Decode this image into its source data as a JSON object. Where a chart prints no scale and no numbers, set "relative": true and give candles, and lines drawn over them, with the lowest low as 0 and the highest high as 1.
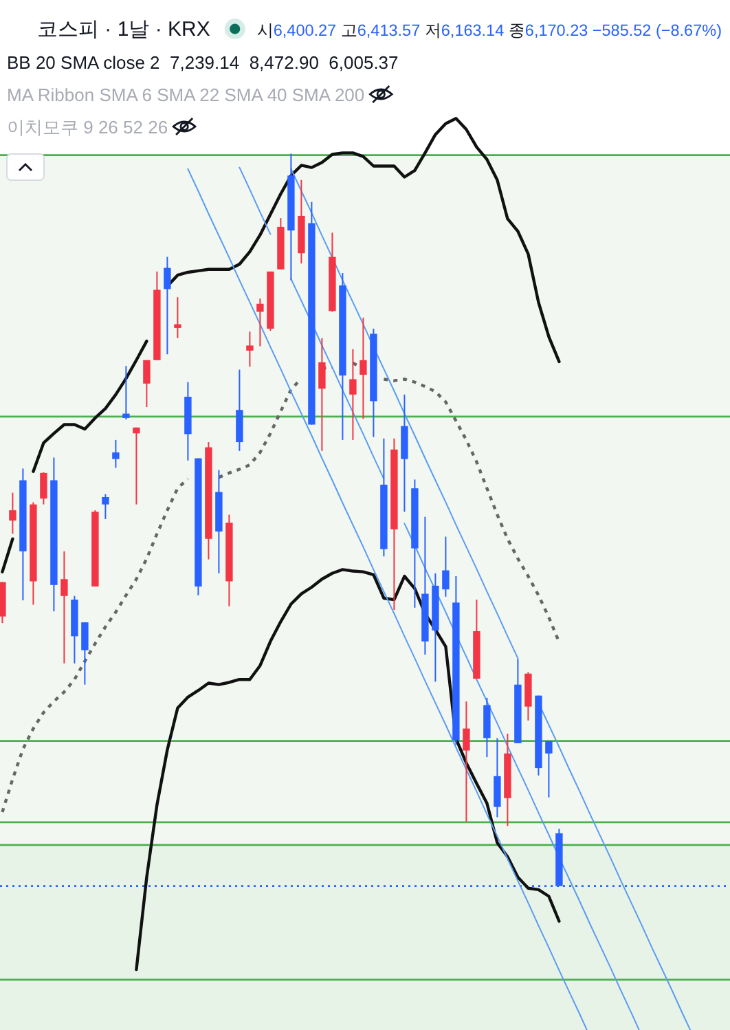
{
  "chart_data": {
    "type": "candlestick",
    "title": "코스피 · 1날 · KRX",
    "subtitle": "시6,400.27 고6,413.57 저6,163.14 종6,170.23 −585.52 (−8.67%)",
    "annotations": [
      "BB 20 SMA close 2  7,239.14  8,472.90  6,005.37",
      "MA Ribbon SMA 6 SMA 22 SMA 40 SMA 200",
      "이치모쿠 9 26 52 26"
    ],
    "relative": true,
    "categories": [
      null,
      null,
      null,
      null,
      null,
      null,
      null,
      null,
      null,
      null,
      null,
      null,
      null,
      null,
      null,
      null,
      null,
      null,
      null,
      null,
      null,
      null,
      null,
      null,
      null,
      null,
      null,
      null,
      null,
      null,
      null,
      null,
      null,
      null,
      null,
      null,
      null,
      null,
      null,
      null,
      null,
      null,
      null,
      null,
      null,
      null,
      null,
      null,
      null,
      null,
      null,
      null,
      null,
      null,
      null,
      null,
      null,
      null,
      null,
      null,
      null,
      null,
      null,
      null,
      null,
      null,
      null,
      null,
      null,
      null,
      null
    ],
    "ohlc": [
      [
        0.368,
        0.415,
        0.359,
        0.415
      ],
      [
        0.499,
        0.537,
        0.481,
        0.513
      ],
      [
        0.554,
        0.57,
        0.39,
        0.457
      ],
      [
        0.416,
        0.524,
        0.384,
        0.521
      ],
      [
        0.529,
        0.565,
        0.521,
        0.564
      ],
      [
        0.554,
        0.585,
        0.375,
        0.411
      ],
      [
        0.396,
        0.457,
        0.304,
        0.419
      ],
      [
        0.391,
        0.396,
        0.304,
        0.341
      ],
      [
        0.36,
        0.36,
        0.275,
        0.322
      ],
      [
        0.409,
        0.513,
        0.409,
        0.511
      ],
      [
        0.531,
        0.535,
        0.501,
        0.521
      ],
      [
        0.592,
        0.609,
        0.571,
        0.583
      ],
      [
        0.645,
        0.71,
        0.637,
        0.639
      ],
      [
        0.618,
        0.626,
        0.521,
        0.626
      ],
      [
        0.686,
        0.718,
        0.654,
        0.718
      ],
      [
        0.718,
        0.839,
        0.718,
        0.814
      ],
      [
        0.844,
        0.859,
        0.726,
        0.815
      ],
      [
        0.762,
        0.804,
        0.748,
        0.767
      ],
      [
        0.668,
        0.688,
        0.581,
        0.617
      ],
      [
        0.584,
        0.584,
        0.397,
        0.409
      ],
      [
        0.474,
        0.606,
        0.446,
        0.599
      ],
      [
        0.538,
        0.568,
        0.427,
        0.484
      ],
      [
        0.416,
        0.507,
        0.382,
        0.496
      ],
      [
        0.65,
        0.705,
        0.594,
        0.606
      ],
      [
        0.731,
        0.757,
        0.709,
        0.738
      ],
      [
        0.784,
        0.802,
        0.737,
        0.795
      ],
      [
        0.761,
        0.839,
        0.758,
        0.839
      ],
      [
        0.842,
        0.912,
        0.842,
        0.9
      ],
      [
        0.97,
        1,
        0.827,
        0.895
      ],
      [
        0.864,
        0.964,
        0.85,
        0.915
      ],
      [
        0.905,
        0.934,
        0.63,
        0.63
      ],
      [
        0.679,
        0.748,
        0.594,
        0.715
      ],
      [
        0.785,
        0.892,
        0.784,
        0.859
      ],
      [
        0.82,
        0.837,
        0.609,
        0.697
      ],
      [
        0.671,
        0.733,
        0.609,
        0.692
      ],
      [
        0.698,
        0.776,
        0.638,
        0.718
      ],
      [
        0.754,
        0.761,
        0.613,
        0.662
      ],
      [
        0.548,
        0.611,
        0.45,
        0.46
      ],
      [
        0.487,
        0.611,
        0.377,
        0.596
      ],
      [
        0.628,
        0.671,
        0.511,
        0.583
      ],
      [
        0.543,
        0.555,
        0.38,
        0.461
      ],
      [
        0.399,
        0.504,
        0.316,
        0.334
      ],
      [
        0.41,
        0.427,
        0.279,
        0.349
      ],
      [
        0.431,
        0.477,
        0.395,
        0.405
      ],
      [
        0.387,
        0.423,
        0.193,
        0.199
      ],
      [
        0.185,
        0.252,
        0.088,
        0.215
      ],
      [
        0.283,
        0.391,
        0.283,
        0.348
      ],
      [
        0.247,
        0.257,
        0.176,
        0.202
      ],
      [
        0.15,
        0.202,
        0.094,
        0.108
      ],
      [
        0.12,
        0.208,
        0.082,
        0.181
      ],
      [
        0.275,
        0.31,
        0.195,
        0.195
      ],
      [
        0.245,
        0.292,
        0.226,
        0.29
      ],
      [
        0.26,
        0.26,
        0.151,
        0.161
      ],
      [
        0.198,
        0.198,
        0.121,
        0.181
      ],
      [
        0.072,
        0.078,
        0,
        0
      ],
      null,
      null,
      null,
      null,
      null,
      null,
      null,
      null,
      null,
      null,
      null,
      null,
      null,
      null,
      null,
      null
    ],
    "colors": [
      "#f23645",
      "#f23645",
      "#2962ff",
      "#f23645",
      "#f23645",
      "#2962ff",
      "#f23645",
      "#2962ff",
      "#2962ff",
      "#f23645",
      "#2962ff",
      "#2962ff",
      "#2962ff",
      "#f23645",
      "#f23645",
      "#f23645",
      "#2962ff",
      "#f23645",
      "#2962ff",
      "#2962ff",
      "#f23645",
      "#2962ff",
      "#f23645",
      "#2962ff",
      "#f23645",
      "#f23645",
      "#f23645",
      "#f23645",
      "#2962ff",
      "#f23645",
      "#2962ff",
      "#f23645",
      "#f23645",
      "#2962ff",
      "#f23645",
      "#f23645",
      "#2962ff",
      "#2962ff",
      "#f23645",
      "#2962ff",
      "#2962ff",
      "#2962ff",
      "#2962ff",
      "#2962ff",
      "#2962ff",
      "#f23645",
      "#f23645",
      "#2962ff",
      "#2962ff",
      "#f23645",
      "#2962ff",
      "#f23645",
      "#2962ff",
      "#2962ff",
      "#2962ff",
      null,
      null,
      null,
      null,
      null,
      null,
      null,
      null,
      null,
      null,
      null,
      null,
      null,
      null,
      null,
      null
    ],
    "series": [
      {
        "type": "line",
        "color": "#111111",
        "values": [
          0.429,
          0.474,
          null,
          0.566,
          0.605,
          0.618,
          0.63,
          0.63,
          0.624,
          0.639,
          0.652,
          0.671,
          0.693,
          0.718,
          0.744,
          null,
          0.819,
          0.834,
          0.838,
          0.84,
          0.842,
          0.842,
          0.842,
          0.849,
          0.866,
          0.889,
          0.917,
          0.945,
          0.97,
          0.984,
          0.981,
          0.988,
          0.999,
          1.001,
          1.001,
          0.996,
          0.983,
          0.983,
          0.983,
          0.968,
          0.977,
          1.001,
          1.026,
          1.041,
          1.048,
          1.033,
          1.009,
          0.992,
          0.964,
          0.911,
          0.894,
          0.863,
          0.797,
          0.75,
          0.716,
          null,
          null,
          null,
          null,
          null,
          null,
          null,
          null,
          null,
          null,
          null,
          null,
          null,
          null,
          null,
          null
        ]
      },
      {
        "type": "line",
        "color": "#666666",
        "line_style": "dotted",
        "values": [
          0.101,
          0.146,
          0.187,
          0.215,
          0.237,
          0.252,
          0.265,
          0.282,
          0.307,
          0.331,
          0.354,
          0.374,
          0.397,
          0.419,
          0.447,
          0.481,
          0.513,
          0.543,
          0.556,
          null,
          null,
          0.558,
          0.564,
          0.569,
          0.575,
          0.592,
          0.618,
          0.648,
          0.678,
          0.693,
          null,
          0.707,
          0.708,
          null,
          0.714,
          0.707,
          null,
          0.692,
          0.69,
          0.692,
          0.688,
          0.682,
          0.675,
          0.661,
          0.635,
          0.609,
          0.579,
          0.543,
          0.507,
          0.474,
          0.447,
          0.423,
          0.397,
          0.367,
          0.333,
          null,
          null,
          null,
          null,
          null,
          null,
          null,
          null,
          null,
          null,
          null,
          null,
          null,
          null,
          null,
          null
        ]
      },
      {
        "type": "line",
        "color": "#111111",
        "values": [
          null,
          null,
          null,
          null,
          null,
          null,
          null,
          null,
          null,
          null,
          null,
          null,
          null,
          -0.114,
          0.012,
          0.111,
          0.186,
          0.243,
          0.258,
          0.267,
          0.277,
          0.275,
          0.278,
          0.282,
          0.282,
          0.301,
          0.334,
          0.361,
          0.385,
          0.399,
          0.408,
          0.419,
          0.427,
          0.432,
          0.43,
          0.429,
          0.425,
          0.393,
          0.391,
          0.423,
          0.406,
          0.372,
          0.35,
          0.327,
          0.201,
          0.168,
          0.14,
          0.113,
          0.059,
          0.04,
          0.012,
          -0.003,
          -0.005,
          -0.014,
          -0.048,
          null,
          null,
          null,
          null,
          null,
          null,
          null,
          null,
          null,
          null,
          null,
          null,
          null,
          null,
          null,
          null
        ]
      },
      {
        "type": "line",
        "color": "#5b9cf0",
        "values": [
          null,
          null,
          null,
          null,
          null,
          null,
          null,
          null,
          null,
          null,
          null,
          null,
          null,
          null,
          null,
          null,
          null,
          null,
          0.979,
          0.949,
          0.918,
          0.888,
          0.858,
          0.827,
          0.797,
          0.767,
          0.736,
          0.706,
          0.675,
          0.645,
          0.615,
          0.584,
          0.554,
          0.523,
          0.493,
          0.463,
          0.432,
          0.402,
          0.372,
          0.341,
          0.311,
          0.28,
          0.25,
          0.22,
          0.189,
          0.159,
          0.129,
          0.098,
          0.068,
          0.037,
          0.007,
          -0.023,
          -0.054,
          -0.084,
          -0.115,
          -0.145,
          -0.175,
          -0.206,
          null,
          null,
          null,
          null,
          null,
          null,
          null,
          null,
          null,
          null,
          null,
          null,
          null
        ]
      },
      {
        "type": "line",
        "color": "#5b9cf0",
        "values": [
          null,
          null,
          null,
          null,
          null,
          null,
          null,
          null,
          null,
          null,
          null,
          null,
          null,
          null,
          null,
          null,
          null,
          null,
          null,
          null,
          null,
          null,
          null,
          0.981,
          0.951,
          0.92,
          0.89,
          null,
          0.829,
          0.799,
          0.769,
          0.738,
          0.708,
          0.677,
          0.647,
          0.617,
          0.586,
          0.556,
          null,
          0.495,
          0.465,
          0.434,
          0.404,
          0.374,
          0.343,
          0.313,
          0.282,
          0.252,
          0.222,
          0.191,
          0.161,
          0.131,
          0.1,
          0.07,
          0.039,
          0.009,
          -0.021,
          -0.052,
          -0.082,
          -0.112,
          -0.143,
          -0.173,
          -0.204,
          null,
          null,
          null,
          null,
          null,
          null,
          null,
          null
        ]
      },
      {
        "type": "line",
        "color": "#5b9cf0",
        "values": [
          null,
          null,
          null,
          null,
          null,
          null,
          null,
          null,
          null,
          null,
          null,
          null,
          null,
          null,
          null,
          null,
          null,
          null,
          null,
          null,
          null,
          null,
          null,
          null,
          null,
          null,
          null,
          null,
          0.979,
          0.949,
          0.919,
          0.888,
          0.858,
          0.827,
          0.797,
          0.767,
          0.736,
          0.706,
          0.676,
          0.645,
          0.615,
          0.584,
          0.554,
          0.524,
          0.493,
          0.463,
          0.433,
          0.402,
          0.372,
          0.341,
          0.311,
          null,
          0.25,
          0.22,
          0.19,
          0.159,
          0.129,
          0.098,
          0.068,
          0.038,
          0.007,
          -0.023,
          -0.053,
          -0.084,
          -0.114,
          -0.144,
          -0.175,
          -0.205,
          null,
          null,
          null
        ]
      }
    ],
    "bands": [
      {
        "axis": "y",
        "from": 0.056,
        "to": 0.998,
        "color": "#f2f8f1"
      },
      {
        "axis": "y",
        "from": -0.197,
        "to": 0.056,
        "color": "#e8f3e7"
      }
    ],
    "ref_lines": [
      {
        "axis": "y",
        "value": 0.998,
        "color": "#4caf50"
      },
      {
        "axis": "y",
        "value": 0.641,
        "color": "#4caf50"
      },
      {
        "axis": "y",
        "value": 0.198,
        "color": "#4caf50"
      },
      {
        "axis": "y",
        "value": 0.087,
        "color": "#4caf50"
      },
      {
        "axis": "y",
        "value": 0.056,
        "color": "#4caf50"
      },
      {
        "axis": "y",
        "value": -0.128,
        "color": "#4caf50"
      },
      {
        "axis": "y",
        "value": 0,
        "color": "#2962ff",
        "line_style": "dotted"
      }
    ]
  }
}
